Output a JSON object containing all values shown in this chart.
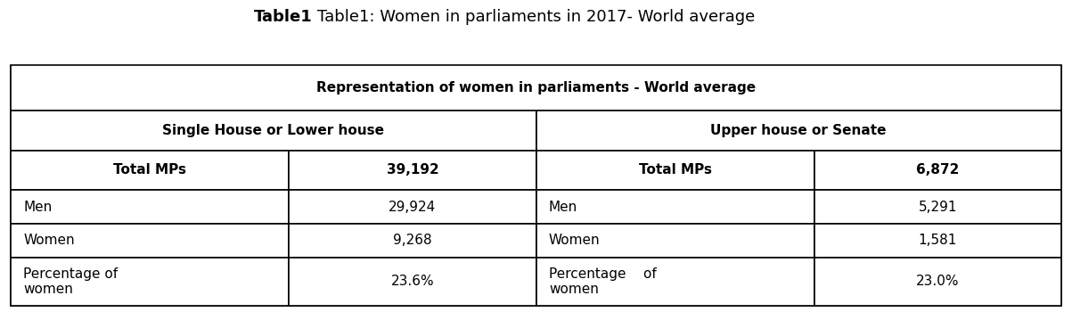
{
  "title_bold": "Table1",
  "title_normal": ": Women in parliaments in 2017- World average",
  "row1_header": "Representation of women in parliaments - World average",
  "col_headers": [
    "Single House or Lower house",
    "Upper house or Senate"
  ],
  "subheaders": [
    [
      "Total MPs",
      "39,192"
    ],
    [
      "Total MPs",
      "6,872"
    ]
  ],
  "rows": [
    [
      "Men",
      "29,924",
      "Men",
      "5,291"
    ],
    [
      "Women",
      "9,268",
      "Women",
      "1,581"
    ],
    [
      "Percentage of\nwomen",
      "23.6%",
      "Percentage    of\nwomen",
      "23.0%"
    ]
  ],
  "bg_color": "#ffffff",
  "border_color": "#000000",
  "font_size_title": 13,
  "font_size_header": 11,
  "font_size_cell": 11
}
